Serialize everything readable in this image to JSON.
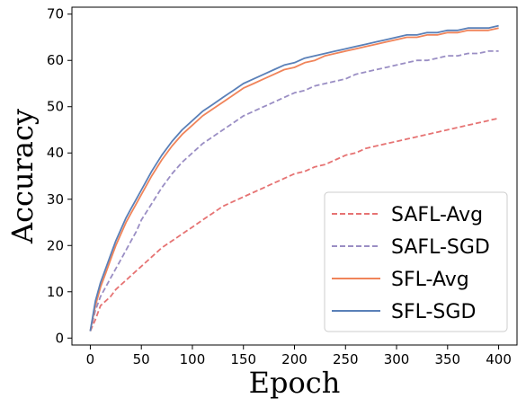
{
  "chart_data": {
    "type": "line",
    "xlabel": "Epoch",
    "ylabel": "Accuracy",
    "xlim": [
      -18,
      418
    ],
    "ylim": [
      -1.5,
      71.5
    ],
    "xticks": [
      0,
      50,
      100,
      150,
      200,
      250,
      300,
      350,
      400
    ],
    "yticks": [
      0,
      10,
      20,
      30,
      40,
      50,
      60,
      70
    ],
    "grid": false,
    "legend_position": "lower-right",
    "series": [
      {
        "name": "SAFL-Avg",
        "color": "#e67373",
        "style": "dashed",
        "x": [
          0,
          5,
          10,
          15,
          20,
          25,
          30,
          35,
          40,
          45,
          50,
          60,
          70,
          80,
          90,
          100,
          110,
          120,
          130,
          140,
          150,
          160,
          170,
          180,
          190,
          200,
          210,
          220,
          230,
          240,
          250,
          260,
          270,
          280,
          290,
          300,
          310,
          320,
          330,
          340,
          350,
          360,
          370,
          380,
          390,
          400
        ],
        "values": [
          1.5,
          4,
          7,
          8,
          9,
          10.5,
          11.5,
          12.5,
          13.5,
          14.5,
          15.5,
          17.5,
          19.5,
          21,
          22.5,
          24,
          25.5,
          27,
          28.5,
          29.5,
          30.5,
          31.5,
          32.5,
          33.5,
          34.5,
          35.5,
          36,
          37,
          37.5,
          38.5,
          39.5,
          40,
          41,
          41.5,
          42,
          42.5,
          43,
          43.5,
          44,
          44.5,
          45,
          45.5,
          46,
          46.5,
          47,
          47.5
        ]
      },
      {
        "name": "SAFL-SGD",
        "color": "#9a8ec4",
        "style": "dashed",
        "x": [
          0,
          5,
          10,
          15,
          20,
          25,
          30,
          35,
          40,
          45,
          50,
          60,
          70,
          80,
          90,
          100,
          110,
          120,
          130,
          140,
          150,
          160,
          170,
          180,
          190,
          200,
          210,
          220,
          230,
          240,
          250,
          260,
          270,
          280,
          290,
          300,
          310,
          320,
          330,
          340,
          350,
          360,
          370,
          380,
          390,
          400
        ],
        "values": [
          1.5,
          6,
          9,
          11,
          13,
          15,
          17,
          19,
          21,
          23,
          25.5,
          29,
          32.5,
          35.5,
          38,
          40,
          42,
          43.5,
          45,
          46.5,
          48,
          49,
          50,
          51,
          52,
          53,
          53.5,
          54.5,
          55,
          55.5,
          56,
          57,
          57.5,
          58,
          58.5,
          59,
          59.5,
          60,
          60,
          60.5,
          61,
          61,
          61.5,
          61.5,
          62,
          62
        ]
      },
      {
        "name": "SFL-Avg",
        "color": "#f0845a",
        "style": "solid",
        "x": [
          0,
          5,
          10,
          15,
          20,
          25,
          30,
          35,
          40,
          45,
          50,
          60,
          70,
          80,
          90,
          100,
          110,
          120,
          130,
          140,
          150,
          160,
          170,
          180,
          190,
          200,
          210,
          220,
          230,
          240,
          250,
          260,
          270,
          280,
          290,
          300,
          310,
          320,
          330,
          340,
          350,
          360,
          370,
          380,
          390,
          400
        ],
        "values": [
          1.5,
          7,
          11,
          14,
          17,
          20,
          22.5,
          25,
          27,
          29,
          31,
          35,
          38.5,
          41.5,
          44,
          46,
          48,
          49.5,
          51,
          52.5,
          54,
          55,
          56,
          57,
          58,
          58.5,
          59.5,
          60,
          61,
          61.5,
          62,
          62.5,
          63,
          63.5,
          64,
          64.5,
          65,
          65,
          65.5,
          65.5,
          66,
          66,
          66.5,
          66.5,
          66.5,
          67
        ]
      },
      {
        "name": "SFL-SGD",
        "color": "#5a80b8",
        "style": "solid",
        "x": [
          0,
          5,
          10,
          15,
          20,
          25,
          30,
          35,
          40,
          45,
          50,
          60,
          70,
          80,
          90,
          100,
          110,
          120,
          130,
          140,
          150,
          160,
          170,
          180,
          190,
          200,
          210,
          220,
          230,
          240,
          250,
          260,
          270,
          280,
          290,
          300,
          310,
          320,
          330,
          340,
          350,
          360,
          370,
          380,
          390,
          400
        ],
        "values": [
          1.5,
          8,
          12,
          15,
          18,
          21,
          23.5,
          26,
          28,
          30,
          32,
          36,
          39.5,
          42.5,
          45,
          47,
          49,
          50.5,
          52,
          53.5,
          55,
          56,
          57,
          58,
          59,
          59.5,
          60.5,
          61,
          61.5,
          62,
          62.5,
          63,
          63.5,
          64,
          64.5,
          65,
          65.5,
          65.5,
          66,
          66,
          66.5,
          66.5,
          67,
          67,
          67,
          67.5
        ]
      }
    ]
  }
}
